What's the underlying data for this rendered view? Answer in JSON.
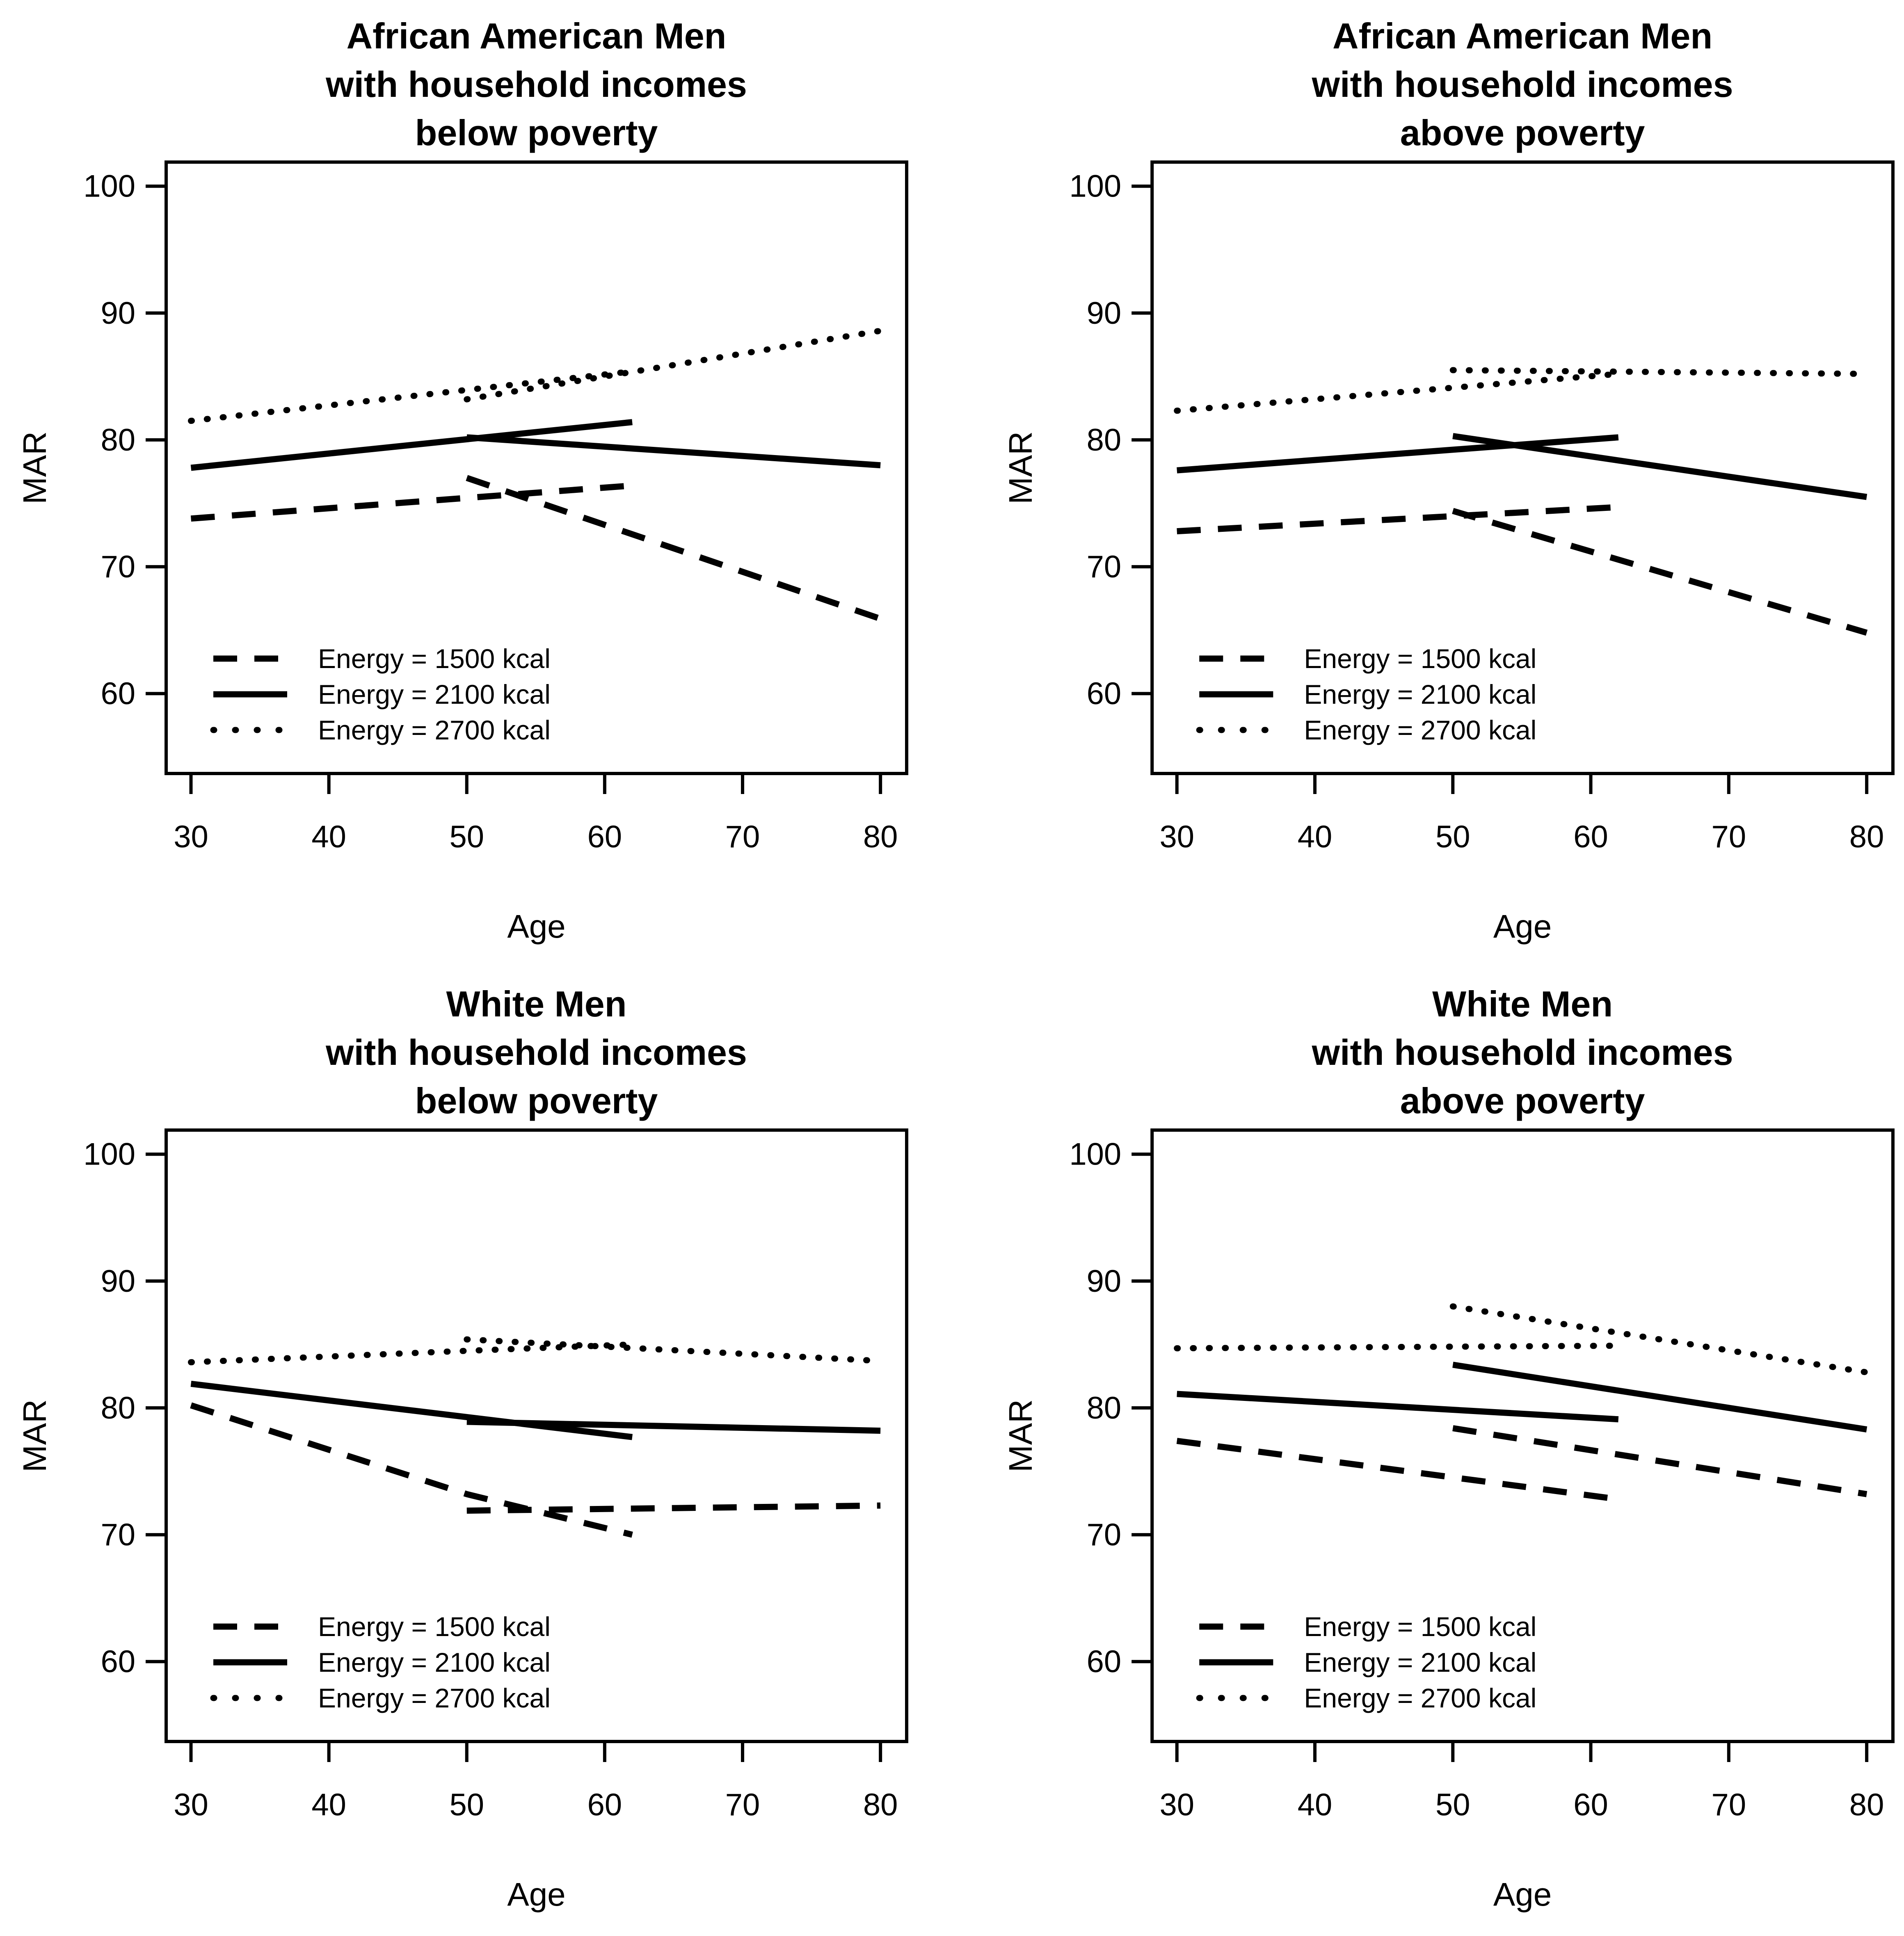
{
  "page": {
    "background": "#ffffff",
    "foreground": "#000000"
  },
  "chart_data": {
    "type": "line",
    "layout": "2x2-small-multiples",
    "grid": false,
    "legend_position": "lower-left-inside",
    "legend_items": [
      {
        "label": "Energy = 1500 kcal",
        "linetype": "dashed"
      },
      {
        "label": "Energy = 2100 kcal",
        "linetype": "solid"
      },
      {
        "label": "Energy = 2700 kcal",
        "linetype": "dotted"
      }
    ],
    "panels": [
      {
        "title_lines": [
          "African American Men",
          "with household incomes",
          "below poverty"
        ],
        "xlabel": "Age",
        "ylabel": "MAR",
        "x_ticks": [
          30,
          40,
          50,
          60,
          70,
          80
        ],
        "y_ticks": [
          60,
          70,
          80,
          90,
          100
        ],
        "xlim": [
          28.2,
          81.9
        ],
        "ylim": [
          53.7,
          101.9
        ],
        "series": [
          {
            "label": "Energy = 1500 kcal",
            "linetype": "dashed",
            "segments": [
              [
                [
                  30,
                  73.8
                ],
                [
                  62,
                  76.4
                ]
              ],
              [
                [
                  50,
                  77.0
                ],
                [
                  80,
                  65.9
                ]
              ]
            ]
          },
          {
            "label": "Energy = 2100 kcal",
            "linetype": "solid",
            "segments": [
              [
                [
                  30,
                  77.8
                ],
                [
                  62,
                  81.4
                ]
              ],
              [
                [
                  50,
                  80.2
                ],
                [
                  80,
                  78.0
                ]
              ]
            ]
          },
          {
            "label": "Energy = 2700 kcal",
            "linetype": "dotted",
            "segments": [
              [
                [
                  30,
                  81.5
                ],
                [
                  62,
                  85.4
                ]
              ],
              [
                [
                  50,
                  83.2
                ],
                [
                  80,
                  88.6
                ]
              ]
            ]
          }
        ]
      },
      {
        "title_lines": [
          "African American Men",
          "with household incomes",
          "above poverty"
        ],
        "xlabel": "Age",
        "ylabel": "MAR",
        "x_ticks": [
          30,
          40,
          50,
          60,
          70,
          80
        ],
        "y_ticks": [
          60,
          70,
          80,
          90,
          100
        ],
        "xlim": [
          28.2,
          81.9
        ],
        "ylim": [
          53.7,
          101.9
        ],
        "series": [
          {
            "label": "Energy = 1500 kcal",
            "linetype": "dashed",
            "segments": [
              [
                [
                  30,
                  72.8
                ],
                [
                  62,
                  74.7
                ]
              ],
              [
                [
                  50,
                  74.4
                ],
                [
                  80,
                  64.8
                ]
              ]
            ]
          },
          {
            "label": "Energy = 2100 kcal",
            "linetype": "solid",
            "segments": [
              [
                [
                  30,
                  77.6
                ],
                [
                  62,
                  80.2
                ]
              ],
              [
                [
                  50,
                  80.3
                ],
                [
                  80,
                  75.5
                ]
              ]
            ]
          },
          {
            "label": "Energy = 2700 kcal",
            "linetype": "dotted",
            "segments": [
              [
                [
                  30,
                  82.3
                ],
                [
                  62,
                  85.2
                ]
              ],
              [
                [
                  50,
                  85.5
                ],
                [
                  80,
                  85.2
                ]
              ]
            ]
          }
        ]
      },
      {
        "title_lines": [
          "White Men",
          "with household incomes",
          "below poverty"
        ],
        "xlabel": "Age",
        "ylabel": "MAR",
        "x_ticks": [
          30,
          40,
          50,
          60,
          70,
          80
        ],
        "y_ticks": [
          60,
          70,
          80,
          90,
          100
        ],
        "xlim": [
          28.2,
          81.9
        ],
        "ylim": [
          53.7,
          101.9
        ],
        "series": [
          {
            "label": "Energy = 1500 kcal",
            "linetype": "dashed",
            "segments": [
              [
                [
                  30,
                  80.2
                ],
                [
                  50,
                  73.2
                ],
                [
                  62,
                  70.0
                ]
              ],
              [
                [
                  50,
                  71.9
                ],
                [
                  80,
                  72.3
                ]
              ]
            ]
          },
          {
            "label": "Energy = 2100 kcal",
            "linetype": "solid",
            "segments": [
              [
                [
                  30,
                  81.9
                ],
                [
                  62,
                  77.7
                ]
              ],
              [
                [
                  50,
                  78.9
                ],
                [
                  80,
                  78.2
                ]
              ]
            ]
          },
          {
            "label": "Energy = 2700 kcal",
            "linetype": "dotted",
            "segments": [
              [
                [
                  30,
                  83.6
                ],
                [
                  50,
                  84.5
                ],
                [
                  62,
                  85.0
                ]
              ],
              [
                [
                  50,
                  85.4
                ],
                [
                  80,
                  83.7
                ]
              ]
            ]
          }
        ]
      },
      {
        "title_lines": [
          "White Men",
          "with household incomes",
          "above poverty"
        ],
        "xlabel": "Age",
        "ylabel": "MAR",
        "x_ticks": [
          30,
          40,
          50,
          60,
          70,
          80
        ],
        "y_ticks": [
          60,
          70,
          80,
          90,
          100
        ],
        "xlim": [
          28.2,
          81.9
        ],
        "ylim": [
          53.7,
          101.9
        ],
        "series": [
          {
            "label": "Energy = 1500 kcal",
            "linetype": "dashed",
            "segments": [
              [
                [
                  30,
                  77.4
                ],
                [
                  62,
                  72.8
                ]
              ],
              [
                [
                  50,
                  78.4
                ],
                [
                  80,
                  73.2
                ]
              ]
            ]
          },
          {
            "label": "Energy = 2100 kcal",
            "linetype": "solid",
            "segments": [
              [
                [
                  30,
                  81.1
                ],
                [
                  62,
                  79.1
                ]
              ],
              [
                [
                  50,
                  83.4
                ],
                [
                  80,
                  78.3
                ]
              ]
            ]
          },
          {
            "label": "Energy = 2700 kcal",
            "linetype": "dotted",
            "segments": [
              [
                [
                  30,
                  84.7
                ],
                [
                  62,
                  84.9
                ]
              ],
              [
                [
                  50,
                  88.0
                ],
                [
                  80,
                  82.8
                ]
              ]
            ]
          }
        ]
      }
    ]
  }
}
